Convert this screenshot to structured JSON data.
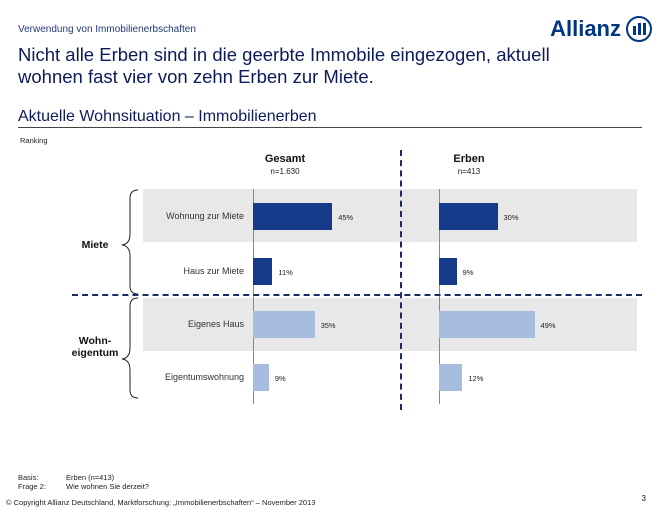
{
  "kicker": "Verwendung von Immobilienerbschaften",
  "logo": "Allianz",
  "headline": "Nicht alle Erben sind in die geerbte Immobile eingezogen, aktuell wohnen fast vier von zehn Erben zur Miete.",
  "subtitle": "Aktuelle Wohnsituation – Immobilienerben",
  "ranking": "Ranking",
  "groups": [
    "Miete",
    "Wohn-\neigentum"
  ],
  "chart_data": {
    "type": "bar",
    "orientation": "horizontal",
    "categories": [
      "Wohnung zur Miete",
      "Haus zur Miete",
      "Eigenes Haus",
      "Eigentumswohnung"
    ],
    "series": [
      {
        "name": "Gesamt",
        "n": "n=1.630",
        "values": [
          45,
          11,
          35,
          9
        ],
        "labels": [
          "45%",
          "11%",
          "35%",
          "9%"
        ]
      },
      {
        "name": "Erben",
        "n": "n=413",
        "values": [
          30,
          9,
          49,
          12
        ],
        "labels": [
          "30%",
          "9%",
          "49%",
          "12%"
        ]
      }
    ],
    "colors": {
      "miete": "#163a8a",
      "eigentum": "#a7bde0"
    }
  },
  "footer": {
    "basis_label": "Basis:",
    "basis": "Erben (n=413)",
    "frage_label": "Frage 2:",
    "frage": "Wie wohnen Sie derzeit?",
    "copyright": "© Copyright Allianz Deutschland, Marktforschung: „Immobilienerbschaften“ – November 2013",
    "page": "3"
  }
}
